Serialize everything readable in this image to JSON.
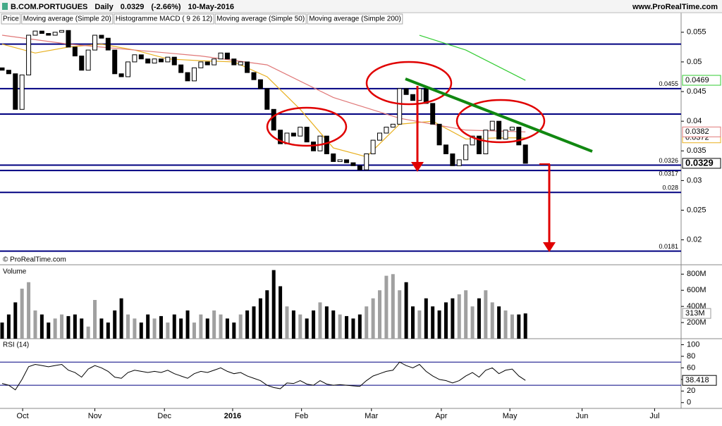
{
  "header": {
    "symbol": "B.COM.PORTUGUES",
    "period": "Daily",
    "change": "(-2.66%)",
    "date": "10-May-2016",
    "site": "www.ProRealTime.com",
    "copyright": "© ProRealTime.com",
    "legend_extra": "Histogramme MACD ( 9 26 12)"
  },
  "chart_data": [
    {
      "type": "candlestick",
      "name": "Price",
      "x": [
        0,
        2,
        4,
        6,
        8,
        10,
        12,
        14,
        16,
        18,
        20,
        22,
        24,
        26,
        28,
        30,
        32,
        34,
        36,
        38,
        40,
        42,
        44,
        46,
        48,
        50,
        52,
        54,
        56,
        58,
        60,
        62,
        64,
        66,
        68,
        70,
        72,
        74,
        76,
        78,
        80,
        82,
        84,
        86,
        88,
        90,
        92,
        94,
        96,
        98,
        100,
        102,
        104,
        106,
        108,
        110,
        112,
        114,
        116,
        118,
        120,
        122,
        124,
        126,
        128,
        130,
        132,
        134,
        136,
        138,
        140,
        142,
        144,
        146,
        148,
        150,
        152,
        154,
        156,
        158
      ],
      "open": [
        0.049,
        0.0486,
        0.048,
        0.042,
        0.0478,
        0.0545,
        0.0552,
        0.0548,
        0.0545,
        0.055,
        0.0553,
        0.0525,
        0.051,
        0.0486,
        0.052,
        0.0545,
        0.054,
        0.052,
        0.048,
        0.0475,
        0.05,
        0.0512,
        0.0505,
        0.0498,
        0.0505,
        0.05,
        0.0508,
        0.0495,
        0.0482,
        0.0468,
        0.049,
        0.05,
        0.0495,
        0.0505,
        0.0515,
        0.0505,
        0.0495,
        0.05,
        0.0482,
        0.047,
        0.0455,
        0.042,
        0.0385,
        0.0362,
        0.038,
        0.0375,
        0.039,
        0.0365,
        0.035,
        0.0375,
        0.0345,
        0.0332,
        0.0335,
        0.033,
        0.0325,
        0.0318,
        0.0345,
        0.0368,
        0.038,
        0.039,
        0.0395,
        0.0455,
        0.0445,
        0.0435,
        0.0455,
        0.043,
        0.0395,
        0.036,
        0.0345,
        0.0325,
        0.0335,
        0.036,
        0.0375,
        0.0345,
        0.0385,
        0.04,
        0.037,
        0.0385,
        0.039,
        0.036
      ],
      "close": [
        0.0486,
        0.048,
        0.042,
        0.0478,
        0.0545,
        0.0552,
        0.0548,
        0.0545,
        0.055,
        0.0553,
        0.0525,
        0.051,
        0.0486,
        0.052,
        0.0545,
        0.054,
        0.052,
        0.048,
        0.0475,
        0.05,
        0.0512,
        0.0505,
        0.0498,
        0.0505,
        0.05,
        0.0508,
        0.0495,
        0.0482,
        0.0468,
        0.049,
        0.05,
        0.0495,
        0.0505,
        0.0515,
        0.0505,
        0.0495,
        0.05,
        0.0482,
        0.047,
        0.0455,
        0.042,
        0.0385,
        0.0362,
        0.038,
        0.0375,
        0.039,
        0.0365,
        0.035,
        0.0375,
        0.0345,
        0.0332,
        0.0335,
        0.033,
        0.0325,
        0.0318,
        0.0345,
        0.0368,
        0.038,
        0.039,
        0.0395,
        0.0455,
        0.0445,
        0.0435,
        0.0455,
        0.043,
        0.0395,
        0.036,
        0.0345,
        0.0325,
        0.0335,
        0.036,
        0.0375,
        0.0345,
        0.0385,
        0.04,
        0.037,
        0.0385,
        0.039,
        0.036,
        0.0329
      ],
      "up_color": "#ffffff",
      "down_color": "#000000",
      "ma": [
        {
          "name": "Moving average (Simple 20)",
          "color": "#e8b020",
          "x": [
            0,
            10,
            20,
            30,
            40,
            50,
            60,
            70,
            80,
            90,
            100,
            110,
            120,
            130,
            140,
            150,
            158
          ],
          "values": [
            0.053,
            0.0515,
            0.0525,
            0.053,
            0.052,
            0.0505,
            0.0502,
            0.05,
            0.0475,
            0.042,
            0.0355,
            0.034,
            0.0395,
            0.04,
            0.037,
            0.0372,
            0.0372
          ]
        },
        {
          "name": "Moving average (Simple 50)",
          "color": "#e07878",
          "x": [
            0,
            20,
            40,
            60,
            80,
            100,
            120,
            140,
            158
          ],
          "values": [
            0.0545,
            0.053,
            0.052,
            0.051,
            0.0495,
            0.044,
            0.0405,
            0.0385,
            0.0382
          ]
        },
        {
          "name": "Moving average (Simple 200)",
          "color": "#33cc33",
          "x": [
            126,
            140,
            158
          ],
          "values": [
            0.0545,
            0.052,
            0.0469
          ]
        }
      ],
      "levels": [
        0.053,
        0.0455,
        0.0412,
        0.0326,
        0.0317,
        0.028,
        0.0181
      ],
      "level_labels": [
        null,
        "0.0455",
        null,
        "0.0326",
        "0.0317",
        "0.028",
        "0.0181"
      ],
      "level_color": "#000080",
      "xlim": [
        0,
        205
      ],
      "ylim": [
        0.0158,
        0.0583
      ],
      "yticks": [
        0.055,
        0.05,
        0.045,
        0.04,
        0.035,
        0.03,
        0.025,
        0.02
      ]
    },
    {
      "type": "bar",
      "name": "Volume",
      "values": [
        200,
        300,
        450,
        620,
        700,
        350,
        300,
        200,
        250,
        300,
        280,
        300,
        250,
        150,
        480,
        250,
        200,
        350,
        500,
        300,
        250,
        200,
        300,
        250,
        280,
        200,
        300,
        250,
        350,
        200,
        300,
        250,
        350,
        300,
        250,
        200,
        300,
        350,
        400,
        500,
        600,
        850,
        650,
        400,
        350,
        300,
        250,
        350,
        450,
        400,
        350,
        300,
        280,
        250,
        300,
        400,
        500,
        600,
        780,
        800,
        600,
        700,
        400,
        350,
        500,
        400,
        350,
        450,
        500,
        550,
        600,
        400,
        500,
        600,
        450,
        400,
        350,
        300,
        300,
        313
      ],
      "last_label": "313M",
      "up_color": "#a0a0a0",
      "down_color": "#000000",
      "ylim": [
        0,
        890
      ],
      "yticks": [
        {
          "value": 800,
          "label": "800M"
        },
        {
          "value": 600,
          "label": "600M"
        },
        {
          "value": 400,
          "label": "400M"
        },
        {
          "value": 200,
          "label": "200M"
        }
      ]
    },
    {
      "type": "line",
      "name": "RSI (14)",
      "color": "#000000",
      "values": [
        33,
        30,
        22,
        40,
        62,
        66,
        64,
        62,
        64,
        66,
        56,
        52,
        44,
        58,
        64,
        60,
        54,
        44,
        42,
        52,
        56,
        54,
        52,
        54,
        52,
        56,
        50,
        46,
        42,
        50,
        54,
        52,
        56,
        60,
        54,
        50,
        52,
        46,
        42,
        38,
        30,
        26,
        24,
        34,
        33,
        38,
        32,
        30,
        38,
        32,
        30,
        31,
        30,
        29,
        28,
        38,
        46,
        50,
        54,
        56,
        70,
        64,
        60,
        66,
        54,
        46,
        40,
        38,
        34,
        38,
        46,
        52,
        44,
        56,
        60,
        50,
        56,
        58,
        46,
        38.418
      ],
      "levels": [
        70,
        30
      ],
      "level_color": "#000080",
      "ylim": [
        -10,
        108
      ],
      "yticks": [
        100,
        80,
        60,
        40,
        20,
        0
      ],
      "xticks": [
        {
          "value": 6.2,
          "label": "Oct"
        },
        {
          "value": 28,
          "label": "Nov"
        },
        {
          "value": 49,
          "label": "Dec"
        },
        {
          "value": 69.6,
          "label": "2016"
        },
        {
          "value": 90.4,
          "label": "Feb"
        },
        {
          "value": 111.5,
          "label": "Mar"
        },
        {
          "value": 132.6,
          "label": "Apr"
        },
        {
          "value": 153.3,
          "label": "May"
        },
        {
          "value": 175.1,
          "label": "Jun"
        },
        {
          "value": 197,
          "label": "Jul"
        }
      ]
    }
  ]
}
